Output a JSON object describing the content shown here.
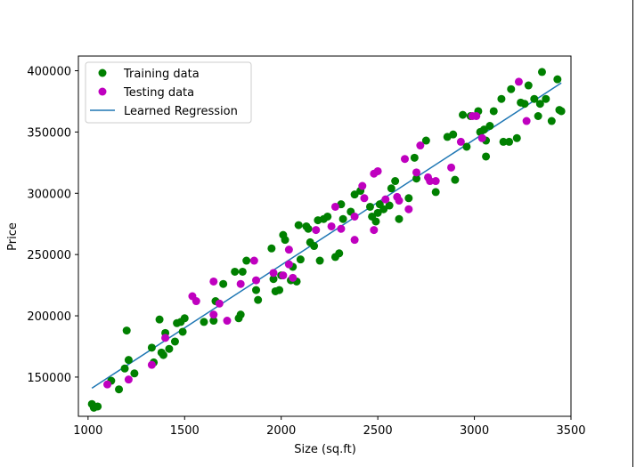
{
  "chart_data": {
    "type": "scatter",
    "title": "",
    "xlabel": "Size (sq.ft)",
    "ylabel": "Price",
    "xlim": [
      950,
      3500
    ],
    "ylim": [
      118000,
      412000
    ],
    "xticks": [
      1000,
      1500,
      2000,
      2500,
      3000,
      3500
    ],
    "xtick_labels": [
      "1000",
      "1500",
      "2000",
      "2500",
      "3000",
      "3500"
    ],
    "yticks": [
      150000,
      200000,
      250000,
      300000,
      350000,
      400000
    ],
    "ytick_labels": [
      "150000",
      "200000",
      "250000",
      "300000",
      "350000",
      "400000"
    ],
    "grid": false,
    "legend_position": "upper-left",
    "series": [
      {
        "name": "Training data",
        "kind": "scatter",
        "color": "#008000",
        "points": [
          [
            1020,
            128000
          ],
          [
            1030,
            125000
          ],
          [
            1050,
            126000
          ],
          [
            1120,
            147000
          ],
          [
            1160,
            140000
          ],
          [
            1190,
            157000
          ],
          [
            1200,
            188000
          ],
          [
            1210,
            164000
          ],
          [
            1240,
            153000
          ],
          [
            1330,
            174000
          ],
          [
            1340,
            162000
          ],
          [
            1370,
            197000
          ],
          [
            1380,
            170000
          ],
          [
            1390,
            168000
          ],
          [
            1400,
            186000
          ],
          [
            1420,
            173000
          ],
          [
            1450,
            179000
          ],
          [
            1460,
            194000
          ],
          [
            1480,
            195000
          ],
          [
            1490,
            187000
          ],
          [
            1500,
            198000
          ],
          [
            1600,
            195000
          ],
          [
            1650,
            196000
          ],
          [
            1660,
            212000
          ],
          [
            1700,
            226000
          ],
          [
            1760,
            236000
          ],
          [
            1780,
            198000
          ],
          [
            1790,
            201000
          ],
          [
            1800,
            236000
          ],
          [
            1820,
            245000
          ],
          [
            1870,
            221000
          ],
          [
            1880,
            213000
          ],
          [
            1950,
            255000
          ],
          [
            1960,
            230000
          ],
          [
            1970,
            220000
          ],
          [
            1990,
            221000
          ],
          [
            2000,
            233000
          ],
          [
            2010,
            266000
          ],
          [
            2020,
            262000
          ],
          [
            2050,
            229000
          ],
          [
            2060,
            240000
          ],
          [
            2080,
            228000
          ],
          [
            2090,
            274000
          ],
          [
            2100,
            246000
          ],
          [
            2130,
            273000
          ],
          [
            2140,
            271000
          ],
          [
            2150,
            260000
          ],
          [
            2170,
            257000
          ],
          [
            2190,
            278000
          ],
          [
            2200,
            245000
          ],
          [
            2220,
            279000
          ],
          [
            2240,
            281000
          ],
          [
            2280,
            248000
          ],
          [
            2300,
            251000
          ],
          [
            2310,
            291000
          ],
          [
            2320,
            279000
          ],
          [
            2360,
            285000
          ],
          [
            2380,
            299000
          ],
          [
            2410,
            302000
          ],
          [
            2460,
            289000
          ],
          [
            2470,
            281000
          ],
          [
            2490,
            277000
          ],
          [
            2500,
            284000
          ],
          [
            2510,
            291000
          ],
          [
            2530,
            287000
          ],
          [
            2560,
            290000
          ],
          [
            2570,
            304000
          ],
          [
            2590,
            310000
          ],
          [
            2610,
            279000
          ],
          [
            2660,
            296000
          ],
          [
            2690,
            329000
          ],
          [
            2700,
            312000
          ],
          [
            2750,
            343000
          ],
          [
            2800,
            301000
          ],
          [
            2860,
            346000
          ],
          [
            2890,
            348000
          ],
          [
            2900,
            311000
          ],
          [
            2940,
            364000
          ],
          [
            2960,
            338000
          ],
          [
            2980,
            363000
          ],
          [
            3020,
            367000
          ],
          [
            3030,
            350000
          ],
          [
            3050,
            352000
          ],
          [
            3060,
            343000
          ],
          [
            3060,
            330000
          ],
          [
            3080,
            355000
          ],
          [
            3100,
            367000
          ],
          [
            3140,
            377000
          ],
          [
            3150,
            342000
          ],
          [
            3180,
            342000
          ],
          [
            3190,
            385000
          ],
          [
            3220,
            345000
          ],
          [
            3240,
            374000
          ],
          [
            3260,
            373000
          ],
          [
            3280,
            388000
          ],
          [
            3310,
            377000
          ],
          [
            3330,
            363000
          ],
          [
            3340,
            373000
          ],
          [
            3350,
            399000
          ],
          [
            3370,
            377000
          ],
          [
            3400,
            359000
          ],
          [
            3430,
            393000
          ],
          [
            3440,
            368000
          ],
          [
            3450,
            367000
          ]
        ]
      },
      {
        "name": "Testing data",
        "kind": "scatter",
        "color": "#bf00bf",
        "points": [
          [
            1100,
            144000
          ],
          [
            1210,
            148000
          ],
          [
            1330,
            160000
          ],
          [
            1400,
            182000
          ],
          [
            1540,
            216000
          ],
          [
            1560,
            212000
          ],
          [
            1650,
            228000
          ],
          [
            1650,
            201000
          ],
          [
            1680,
            210000
          ],
          [
            1720,
            196000
          ],
          [
            1790,
            226000
          ],
          [
            1860,
            245000
          ],
          [
            1870,
            229000
          ],
          [
            1960,
            235000
          ],
          [
            2010,
            233000
          ],
          [
            2040,
            254000
          ],
          [
            2040,
            242000
          ],
          [
            2060,
            231000
          ],
          [
            2180,
            270000
          ],
          [
            2260,
            273000
          ],
          [
            2280,
            289000
          ],
          [
            2310,
            271000
          ],
          [
            2380,
            262000
          ],
          [
            2380,
            281000
          ],
          [
            2420,
            306000
          ],
          [
            2430,
            296000
          ],
          [
            2480,
            270000
          ],
          [
            2480,
            316000
          ],
          [
            2500,
            318000
          ],
          [
            2540,
            295000
          ],
          [
            2600,
            297000
          ],
          [
            2610,
            294000
          ],
          [
            2640,
            328000
          ],
          [
            2660,
            287000
          ],
          [
            2700,
            317000
          ],
          [
            2720,
            339000
          ],
          [
            2760,
            313000
          ],
          [
            2770,
            310000
          ],
          [
            2800,
            310000
          ],
          [
            2880,
            321000
          ],
          [
            2930,
            342000
          ],
          [
            2990,
            363000
          ],
          [
            3010,
            363000
          ],
          [
            3040,
            345000
          ],
          [
            3230,
            391000
          ],
          [
            3270,
            359000
          ]
        ]
      },
      {
        "name": "Learned Regression",
        "kind": "line",
        "color": "#1f77b4",
        "x": [
          1020,
          3450
        ],
        "y": [
          141000,
          390000
        ]
      }
    ]
  }
}
